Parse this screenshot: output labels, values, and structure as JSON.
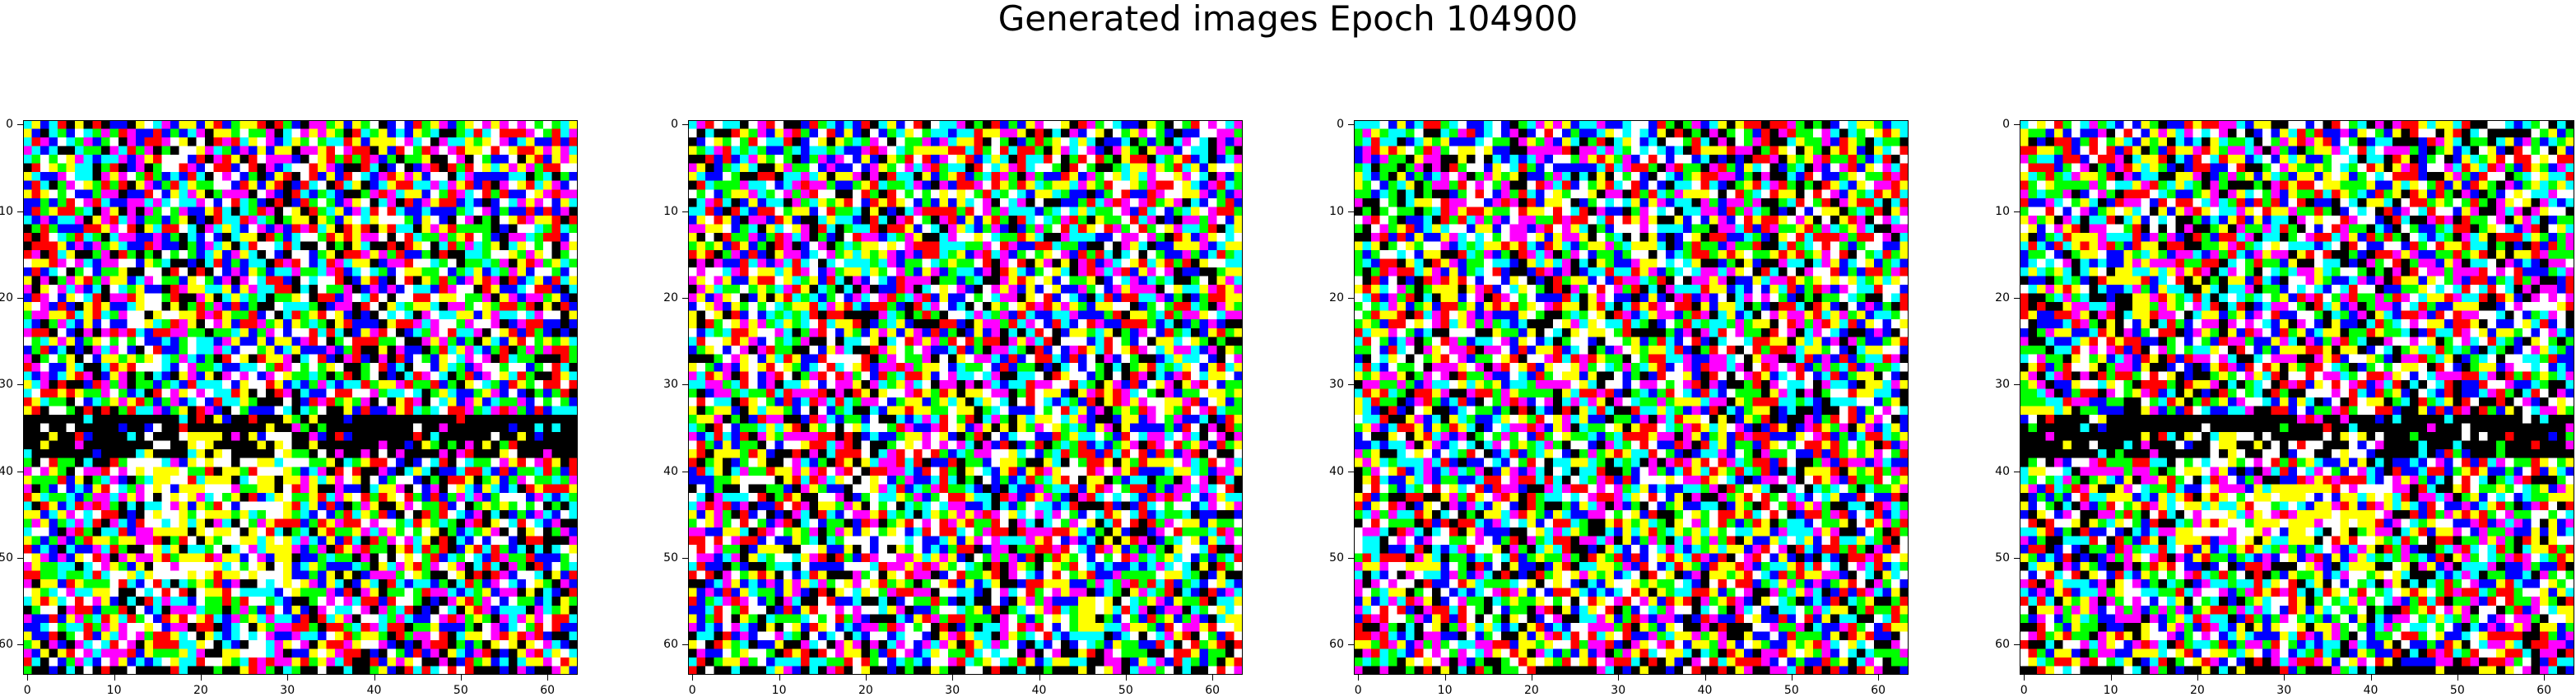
{
  "title": "Generated images Epoch 104900",
  "chart_data": {
    "type": "heatmap",
    "grid_size": [
      64,
      64
    ],
    "xlim": [
      -0.5,
      63.5
    ],
    "ylim": [
      63.5,
      -0.5
    ],
    "x_ticks": [
      0,
      10,
      20,
      30,
      40,
      50,
      60
    ],
    "y_ticks": [
      0,
      10,
      20,
      30,
      40,
      50,
      60
    ],
    "x_tick_labels": [
      "0",
      "10",
      "20",
      "30",
      "40",
      "50",
      "60"
    ],
    "y_tick_labels": [
      "0",
      "10",
      "20",
      "30",
      "40",
      "50",
      "60"
    ],
    "grid": false,
    "palette": [
      "#000000",
      "#ff0000",
      "#00ff00",
      "#0000ff",
      "#ffff00",
      "#ff00ff",
      "#00ffff",
      "#ffffff"
    ],
    "panels": [
      {
        "seed": 1049001,
        "dark_band_rows": [
          34,
          38
        ],
        "bright_patch": [
          36,
          52,
          14,
          30
        ]
      },
      {
        "seed": 1049002,
        "dark_band_rows": [],
        "bright_patch": null
      },
      {
        "seed": 1049003,
        "dark_band_rows": [],
        "bright_patch": null
      },
      {
        "seed": 1049004,
        "dark_band_rows": [
          34,
          38
        ],
        "bright_patch": [
          36,
          48,
          18,
          40
        ]
      }
    ]
  }
}
